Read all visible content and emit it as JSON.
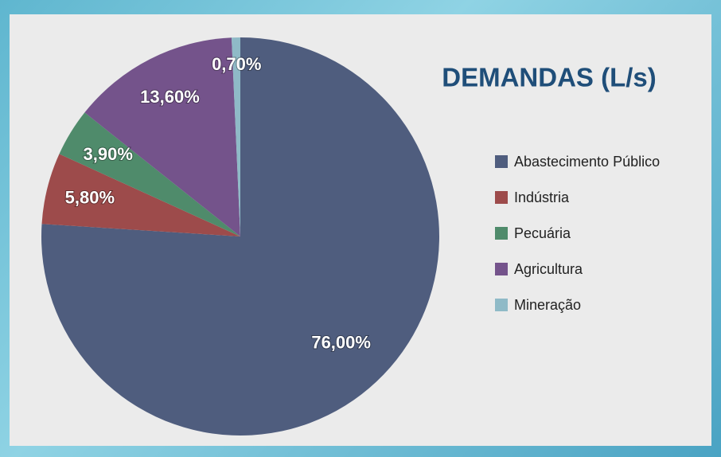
{
  "chart_data": {
    "type": "pie",
    "title": "DEMANDAS (L/s)",
    "categories": [
      "Abastecimento Público",
      "Indústria",
      "Pecuária",
      "Agricultura",
      "Mineração"
    ],
    "values": [
      76,
      5.8,
      3.9,
      13.6,
      0.7
    ],
    "value_labels": [
      "76,00%",
      "5,80%",
      "3,90%",
      "13,60%",
      "0,70%"
    ],
    "colors": [
      "#4f5d7e",
      "#9d4b4b",
      "#4f8b6b",
      "#74538b",
      "#8fbac7"
    ],
    "legend": "right"
  }
}
